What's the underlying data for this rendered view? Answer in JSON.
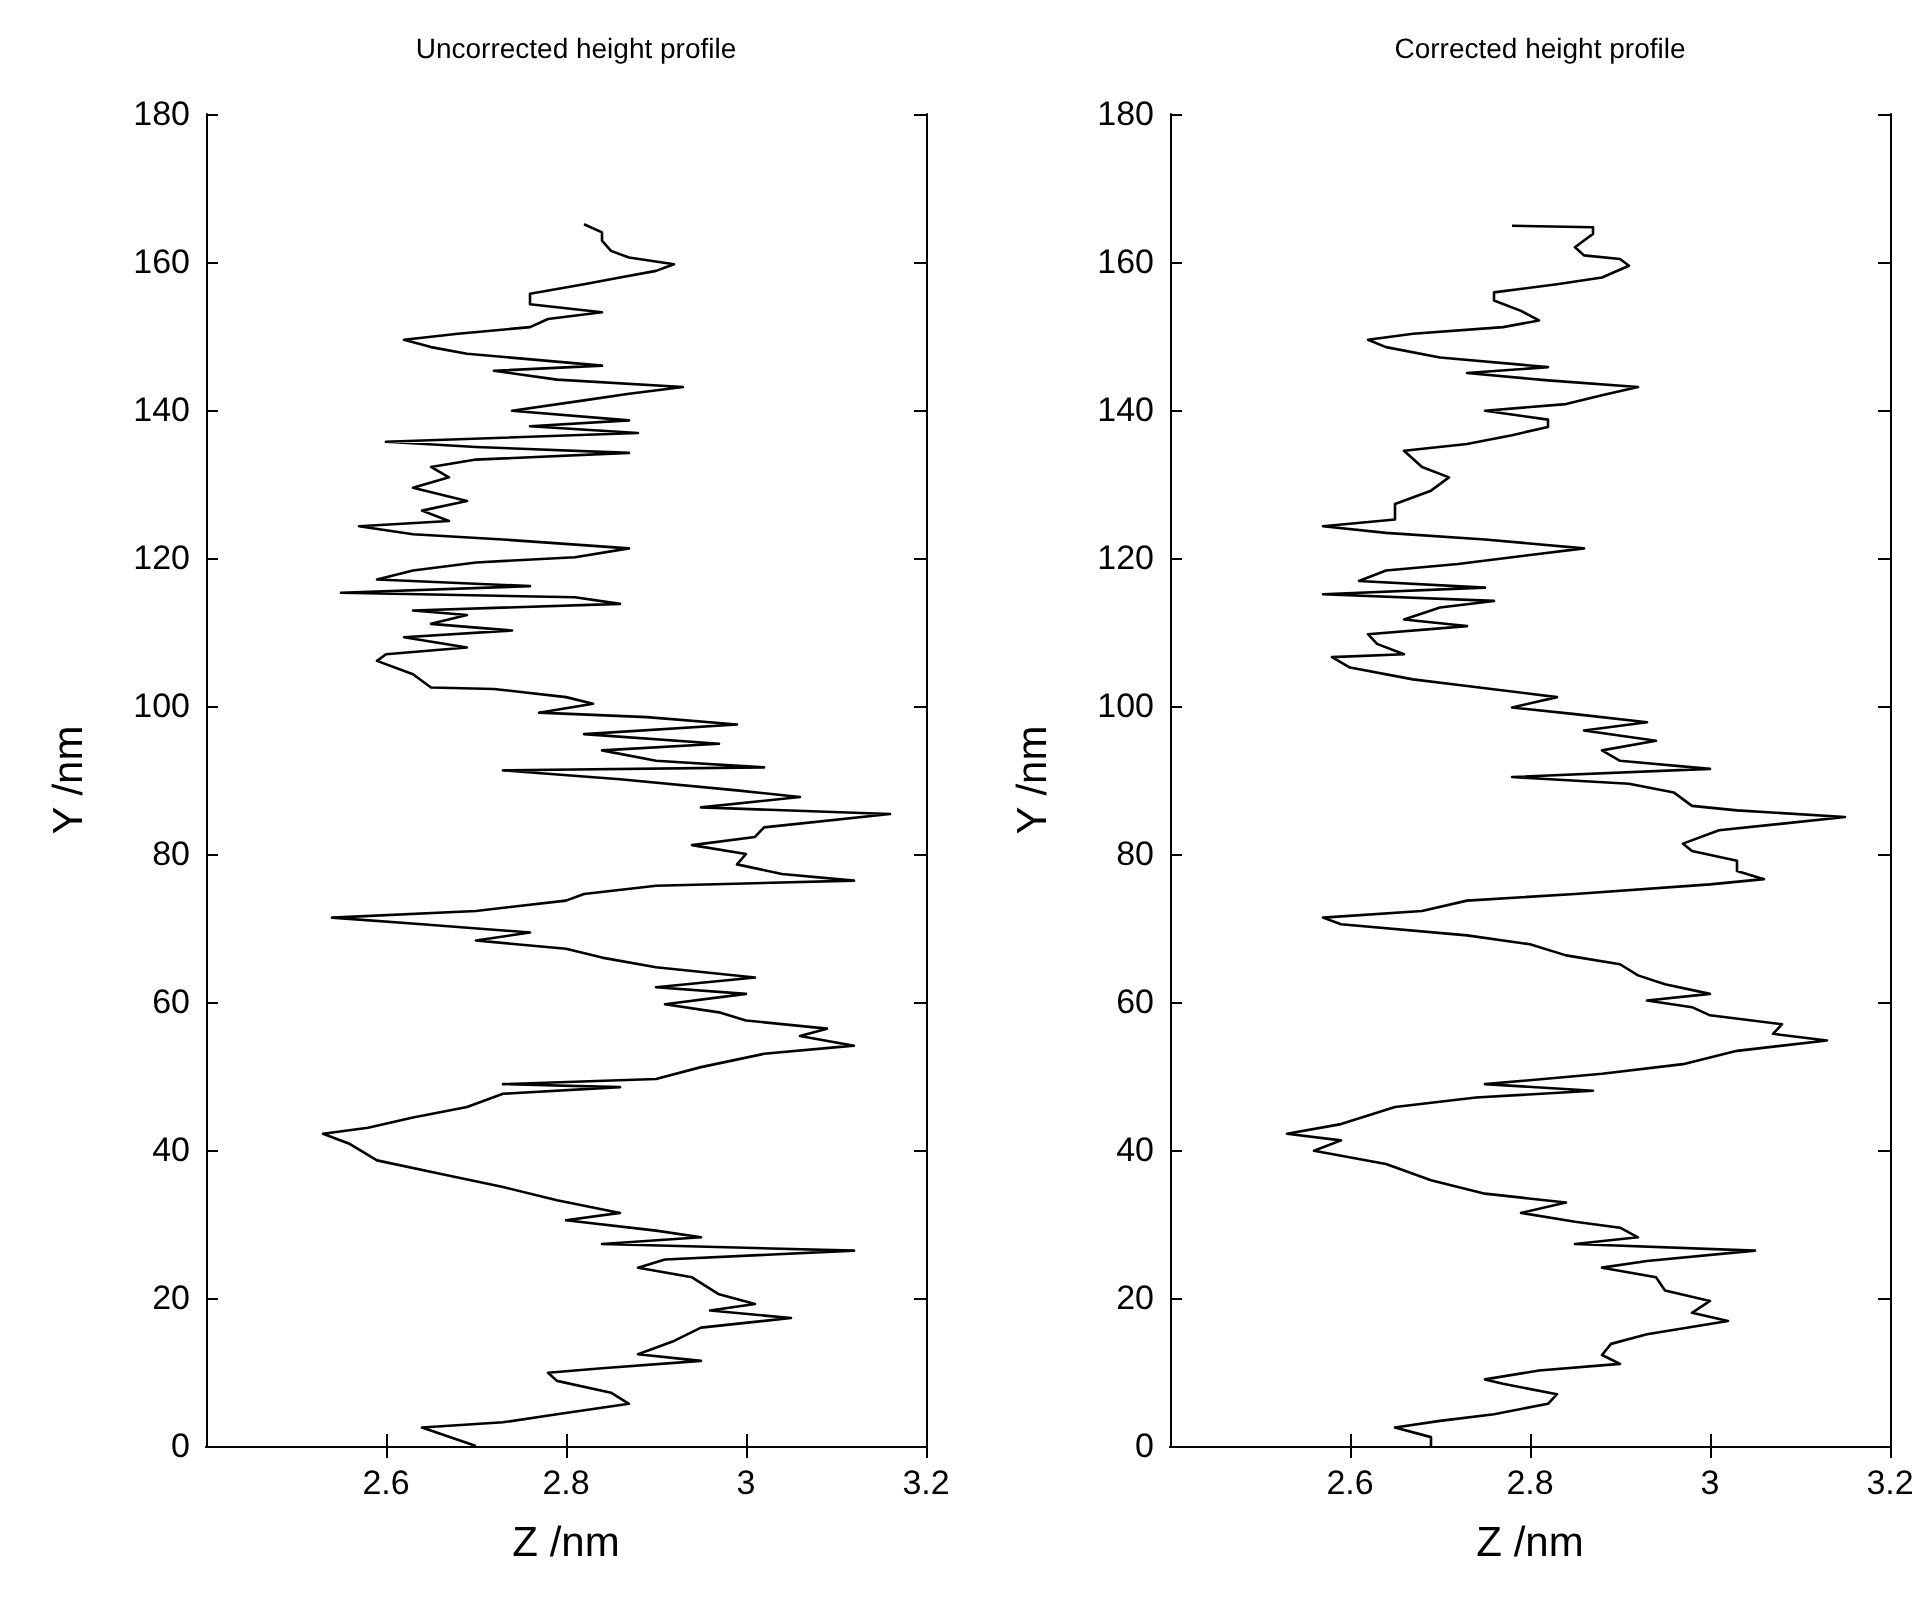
{
  "chart_data": [
    {
      "type": "line",
      "title": "Uncorrected height profile",
      "xlabel": "Z /nm",
      "ylabel": "Y /nm",
      "color": "#000000",
      "marker": "none",
      "grid": false,
      "xlim": [
        2.4,
        3.2
      ],
      "xticks": [
        2.6,
        2.8,
        3,
        3.2
      ],
      "ylim": [
        0,
        180
      ],
      "yticks": [
        0,
        20,
        40,
        60,
        80,
        100,
        120,
        140,
        160,
        180
      ],
      "x": [
        2.7,
        2.64,
        2.73,
        2.79,
        2.87,
        2.85,
        2.79,
        2.78,
        2.84,
        2.95,
        2.88,
        2.92,
        2.95,
        3.05,
        2.96,
        3.01,
        2.97,
        2.94,
        2.88,
        2.91,
        3.12,
        2.84,
        2.95,
        2.9,
        2.8,
        2.86,
        2.79,
        2.73,
        2.66,
        2.59,
        2.56,
        2.53,
        2.58,
        2.63,
        2.69,
        2.73,
        2.86,
        2.73,
        2.9,
        2.95,
        3.02,
        3.12,
        3.06,
        3.09,
        3.0,
        2.97,
        2.91,
        3.0,
        2.9,
        3.01,
        2.9,
        2.84,
        2.8,
        2.7,
        2.76,
        2.64,
        2.54,
        2.7,
        2.8,
        2.82,
        2.9,
        3.12,
        3.04,
        2.99,
        3.0,
        2.94,
        3.01,
        3.02,
        3.16,
        2.95,
        3.06,
        2.99,
        2.86,
        2.73,
        3.02,
        2.9,
        2.84,
        2.97,
        2.82,
        2.99,
        2.89,
        2.77,
        2.83,
        2.8,
        2.72,
        2.65,
        2.63,
        2.59,
        2.6,
        2.69,
        2.62,
        2.74,
        2.65,
        2.69,
        2.63,
        2.86,
        2.81,
        2.55,
        2.76,
        2.59,
        2.63,
        2.7,
        2.81,
        2.87,
        2.73,
        2.63,
        2.57,
        2.67,
        2.64,
        2.69,
        2.63,
        2.67,
        2.65,
        2.7,
        2.87,
        2.7,
        2.6,
        2.88,
        2.76,
        2.87,
        2.74,
        2.82,
        2.87,
        2.93,
        2.79,
        2.72,
        2.84,
        2.69,
        2.65,
        2.62,
        2.68,
        2.76,
        2.78,
        2.84,
        2.76,
        2.76,
        2.82,
        2.86,
        2.9,
        2.92,
        2.87,
        2.85,
        2.84,
        2.84,
        2.82
      ],
      "values": [
        0,
        2.5,
        3.2,
        4.3,
        5.7,
        7.2,
        8.8,
        9.9,
        10.5,
        11.5,
        12.4,
        14.2,
        16,
        17.3,
        18.3,
        19.2,
        20.5,
        22.8,
        24.1,
        25.2,
        26.4,
        27.3,
        28.2,
        29.1,
        30.5,
        31.5,
        33.2,
        35,
        36.8,
        38.6,
        40.8,
        42.2,
        43,
        44.4,
        45.8,
        47.6,
        48.5,
        48.9,
        49.6,
        51.2,
        53,
        54.1,
        55.4,
        56.4,
        57.5,
        58.6,
        59.7,
        61.1,
        62,
        63.3,
        64.7,
        66,
        67.2,
        68.3,
        69.4,
        70.5,
        71.4,
        72.3,
        73.7,
        74.6,
        75.7,
        76.4,
        77.3,
        78.6,
        80,
        81.2,
        82.3,
        83.6,
        85.4,
        86.3,
        87.7,
        88.6,
        90.1,
        91.3,
        91.7,
        92.6,
        94,
        94.9,
        96.2,
        97.5,
        98.5,
        99.1,
        100.3,
        101.2,
        102.3,
        102.5,
        104.3,
        106.1,
        107,
        107.9,
        109.3,
        110.2,
        111.1,
        112.3,
        112.9,
        113.8,
        114.7,
        115.3,
        116.2,
        117.1,
        118.3,
        119.4,
        120.1,
        121.3,
        122.5,
        123.2,
        124.3,
        125,
        126.4,
        127.7,
        129.5,
        130.9,
        132.3,
        133.3,
        134.2,
        135,
        135.7,
        136.9,
        137.8,
        138.6,
        139.9,
        141.3,
        142.2,
        143.1,
        144.1,
        145.3,
        146,
        147.6,
        148.5,
        149.5,
        150.3,
        151.2,
        152.3,
        153.2,
        154.3,
        155.7,
        157,
        157.9,
        158.8,
        159.7,
        160.6,
        161.5,
        162.9,
        164,
        165.1
      ]
    },
    {
      "type": "line",
      "title": "Corrected height profile",
      "xlabel": "Z /nm",
      "ylabel": "Y /nm",
      "color": "#000000",
      "marker": "none",
      "grid": false,
      "xlim": [
        2.4,
        3.2
      ],
      "xticks": [
        2.6,
        2.8,
        3,
        3.2
      ],
      "ylim": [
        0,
        180
      ],
      "yticks": [
        0,
        20,
        40,
        60,
        80,
        100,
        120,
        140,
        160,
        180
      ],
      "x": [
        2.69,
        2.69,
        2.65,
        2.7,
        2.76,
        2.82,
        2.83,
        2.77,
        2.75,
        2.81,
        2.9,
        2.88,
        2.89,
        2.93,
        3.02,
        2.98,
        3.0,
        2.95,
        2.94,
        2.88,
        2.93,
        3.05,
        2.85,
        2.92,
        2.9,
        2.85,
        2.79,
        2.84,
        2.75,
        2.69,
        2.64,
        2.56,
        2.59,
        2.53,
        2.59,
        2.65,
        2.74,
        2.87,
        2.75,
        2.88,
        2.97,
        3.03,
        3.13,
        3.07,
        3.08,
        3.0,
        2.98,
        2.93,
        3.0,
        2.95,
        2.92,
        2.9,
        2.84,
        2.8,
        2.73,
        2.59,
        2.57,
        2.68,
        2.73,
        2.85,
        3.0,
        3.06,
        3.03,
        3.03,
        2.98,
        2.97,
        3.01,
        3.15,
        3.03,
        2.98,
        2.96,
        2.91,
        2.78,
        3.0,
        2.9,
        2.88,
        2.94,
        2.86,
        2.93,
        2.85,
        2.78,
        2.83,
        2.73,
        2.67,
        2.6,
        2.58,
        2.66,
        2.63,
        2.62,
        2.73,
        2.66,
        2.7,
        2.76,
        2.57,
        2.75,
        2.61,
        2.64,
        2.72,
        2.78,
        2.86,
        2.75,
        2.64,
        2.57,
        2.65,
        2.65,
        2.69,
        2.71,
        2.68,
        2.66,
        2.73,
        2.78,
        2.82,
        2.82,
        2.75,
        2.84,
        2.88,
        2.92,
        2.82,
        2.73,
        2.82,
        2.7,
        2.64,
        2.62,
        2.67,
        2.77,
        2.81,
        2.79,
        2.76,
        2.76,
        2.83,
        2.88,
        2.91,
        2.9,
        2.86,
        2.85,
        2.86,
        2.87,
        2.87,
        2.78
      ],
      "values": [
        0,
        1.2,
        2.5,
        3.4,
        4.3,
        5.7,
        7,
        8.4,
        9,
        10.2,
        11.1,
        12.3,
        13.8,
        15.1,
        16.9,
        18,
        19.6,
        21,
        22.8,
        24.1,
        25,
        26.4,
        27.3,
        28.2,
        29.5,
        30.3,
        31.5,
        32.9,
        34.1,
        35.9,
        38.1,
        39.9,
        41.3,
        42.2,
        43.5,
        45.8,
        47.1,
        48,
        48.9,
        50.3,
        51.6,
        53.4,
        54.8,
        55.7,
        57,
        58.2,
        59.3,
        60.2,
        61.1,
        62.4,
        63.6,
        65.1,
        66.3,
        67.8,
        69,
        70.5,
        71.4,
        72.3,
        73.7,
        74.6,
        75.9,
        76.6,
        77.7,
        79.1,
        80.4,
        81.4,
        83.2,
        85,
        85.9,
        86.5,
        88.3,
        89.5,
        90.4,
        91.5,
        92.6,
        94,
        95.3,
        96.7,
        97.8,
        98.9,
        99.8,
        101.2,
        102.7,
        103.6,
        105.2,
        106.6,
        107,
        108.4,
        109.7,
        110.8,
        111.7,
        113.3,
        114.2,
        115.1,
        116,
        116.9,
        118.3,
        119.2,
        120.1,
        121.3,
        122.5,
        123.4,
        124.3,
        125.2,
        127.3,
        129.1,
        130.9,
        132.3,
        134.5,
        135.4,
        136.6,
        137.7,
        138.7,
        139.9,
        140.8,
        142,
        143.1,
        144,
        145,
        145.8,
        147.1,
        148.5,
        149.5,
        150.3,
        151.2,
        152.1,
        153.4,
        154.8,
        155.9,
        157,
        157.9,
        159.5,
        160.4,
        160.9,
        162,
        162.9,
        163.8,
        164.7,
        164.9
      ]
    }
  ]
}
